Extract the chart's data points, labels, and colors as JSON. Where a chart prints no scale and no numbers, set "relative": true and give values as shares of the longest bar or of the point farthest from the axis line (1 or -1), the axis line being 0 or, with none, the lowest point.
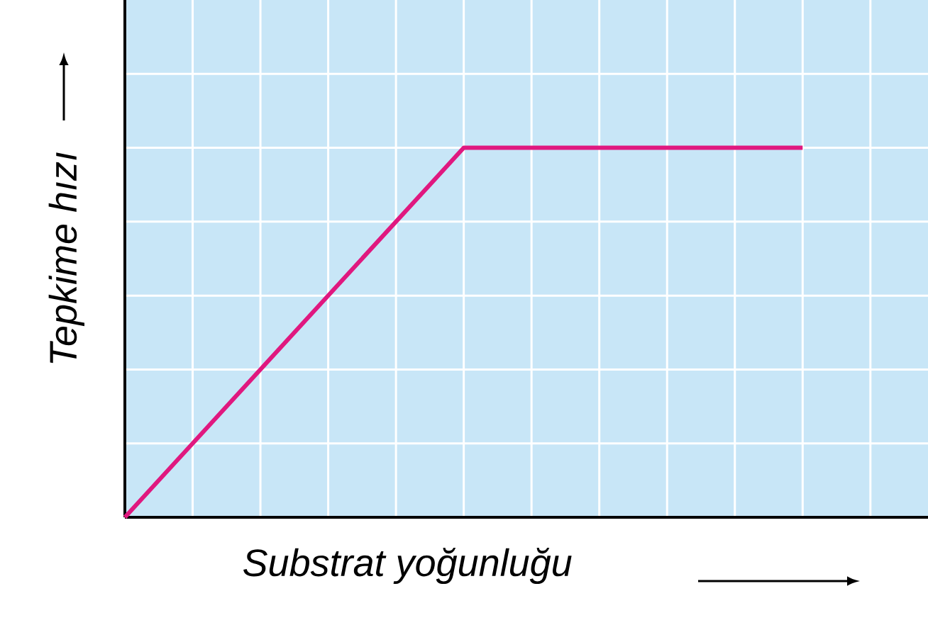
{
  "chart_data": {
    "type": "line",
    "relative": true,
    "xlabel": "Substrat yoğunluğu",
    "ylabel": "Tepkime hızı",
    "categories": [
      null,
      null,
      null
    ],
    "series": [
      {
        "color": "#e0187f",
        "values": [
          0,
          1,
          1
        ]
      }
    ],
    "grid": true,
    "line_style": "solid",
    "marker": "none"
  }
}
